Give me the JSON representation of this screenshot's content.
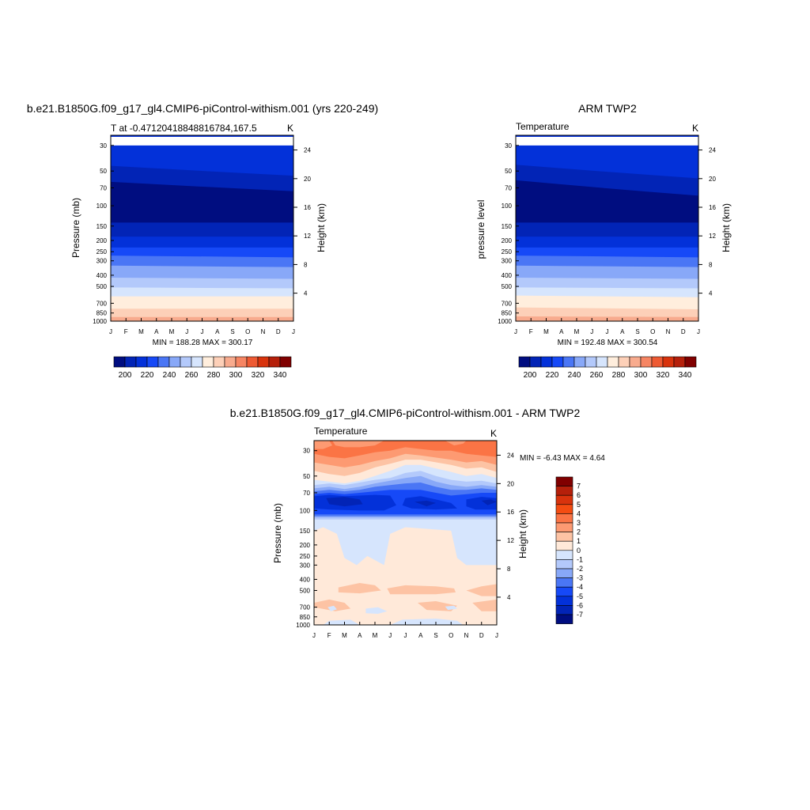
{
  "chart_data": [
    {
      "type": "heatmap",
      "title": "b.e21.B1850G.f09_g17_gl4.CMIP6-piControl-withism.001 (yrs 220-249)",
      "subtitle": "T at -0.47120418848816784,167.5",
      "units": "K",
      "ylabel": "Pressure (mb)",
      "ylabel_right": "Height (km)",
      "x_ticks": [
        "J",
        "F",
        "M",
        "A",
        "M",
        "J",
        "J",
        "A",
        "S",
        "O",
        "N",
        "D",
        "J"
      ],
      "y_ticks": [
        "30",
        "50",
        "70",
        "100",
        "150",
        "200",
        "250",
        "300",
        "400",
        "500",
        "700",
        "850",
        "1000"
      ],
      "y_ticks_right": [
        "24",
        "20",
        "16",
        "12",
        "8",
        "4"
      ],
      "stats": "MIN = 188.28 MAX = 300.17",
      "colorbar_labels": [
        "200",
        "220",
        "240",
        "260",
        "280",
        "300",
        "320",
        "340"
      ],
      "colorbar_orientation": "horizontal",
      "bands": [
        {
          "p": [
            30,
            30
          ],
          "color": "#0331d9"
        },
        {
          "p": [
            45,
            55
          ],
          "color": "#0224b6"
        },
        {
          "p": [
            62,
            75
          ],
          "color": "#000d80"
        },
        {
          "p": [
            140,
            140
          ],
          "color": "#0224b6"
        },
        {
          "p": [
            185,
            185
          ],
          "color": "#0331d9"
        },
        {
          "p": [
            230,
            230
          ],
          "color": "#1649f7"
        },
        {
          "p": [
            270,
            280
          ],
          "color": "#4a76f5"
        },
        {
          "p": [
            330,
            340
          ],
          "color": "#88a8f8"
        },
        {
          "p": [
            420,
            430
          ],
          "color": "#b3c9fb"
        },
        {
          "p": [
            510,
            520
          ],
          "color": "#d6e5fd"
        },
        {
          "p": [
            610,
            610
          ],
          "color": "#ffeedd"
        },
        {
          "p": [
            780,
            780
          ],
          "color": "#fdd0b8"
        },
        {
          "p": [
            920,
            920
          ],
          "color": "#f8ab8e"
        }
      ]
    },
    {
      "type": "heatmap",
      "title": "ARM TWP2",
      "subtitle": "Temperature",
      "units": "K",
      "ylabel": "pressure level",
      "ylabel_right": "Height (km)",
      "x_ticks": [
        "J",
        "F",
        "M",
        "A",
        "M",
        "J",
        "J",
        "A",
        "S",
        "O",
        "N",
        "D",
        "J"
      ],
      "y_ticks": [
        "30",
        "50",
        "70",
        "100",
        "150",
        "200",
        "250",
        "300",
        "400",
        "500",
        "700",
        "850",
        "1000"
      ],
      "y_ticks_right": [
        "24",
        "20",
        "16",
        "12",
        "8",
        "4"
      ],
      "stats": "MIN = 192.48 MAX = 300.54",
      "colorbar_labels": [
        "200",
        "220",
        "240",
        "260",
        "280",
        "300",
        "320",
        "340"
      ],
      "colorbar_orientation": "horizontal",
      "bands": [
        {
          "p": [
            30,
            30
          ],
          "color": "#0331d9"
        },
        {
          "p": [
            44,
            58
          ],
          "color": "#0224b6"
        },
        {
          "p": [
            60,
            82
          ],
          "color": "#000d80"
        },
        {
          "p": [
            140,
            140
          ],
          "color": "#0224b6"
        },
        {
          "p": [
            185,
            185
          ],
          "color": "#0331d9"
        },
        {
          "p": [
            230,
            230
          ],
          "color": "#1649f7"
        },
        {
          "p": [
            270,
            280
          ],
          "color": "#4a76f5"
        },
        {
          "p": [
            330,
            340
          ],
          "color": "#88a8f8"
        },
        {
          "p": [
            420,
            430
          ],
          "color": "#b3c9fb"
        },
        {
          "p": [
            510,
            520
          ],
          "color": "#d6e5fd"
        },
        {
          "p": [
            600,
            620
          ],
          "color": "#ffeedd"
        },
        {
          "p": [
            760,
            790
          ],
          "color": "#fdd0b8"
        },
        {
          "p": [
            910,
            920
          ],
          "color": "#f8ab8e"
        }
      ]
    },
    {
      "type": "heatmap",
      "title": "b.e21.B1850G.f09_g17_gl4.CMIP6-piControl-withism.001 - ARM TWP2",
      "subtitle": "Temperature",
      "units": "K",
      "ylabel": "Pressure (mb)",
      "ylabel_right": "Height (km)",
      "x_ticks": [
        "J",
        "F",
        "M",
        "A",
        "M",
        "J",
        "J",
        "A",
        "S",
        "O",
        "N",
        "D",
        "J"
      ],
      "y_ticks": [
        "30",
        "50",
        "70",
        "100",
        "150",
        "200",
        "250",
        "300",
        "400",
        "500",
        "700",
        "850",
        "1000"
      ],
      "y_ticks_right": [
        "24",
        "20",
        "16",
        "12",
        "8",
        "4"
      ],
      "stats": "MIN =  -6.43 MAX =   4.64",
      "colorbar_labels": [
        "7",
        "6",
        "5",
        "4",
        "3",
        "2",
        "1",
        "0",
        "-1",
        "-2",
        "-3",
        "-4",
        "-5",
        "-6",
        "-7"
      ],
      "colorbar_orientation": "vertical",
      "colorbar_colors": [
        "#800000",
        "#b5200b",
        "#d8330d",
        "#f44c12",
        "#fb7445",
        "#fd9a72",
        "#fdc3a4",
        "#ffe9d9",
        "#d6e5fd",
        "#b3c9fb",
        "#88a8f8",
        "#4a76f5",
        "#1649f7",
        "#0331d9",
        "#0224b6",
        "#000d80"
      ]
    }
  ],
  "colors": {
    "seq": [
      "#000d80",
      "#0224b6",
      "#0331d9",
      "#1649f7",
      "#4a76f5",
      "#88a8f8",
      "#b3c9fb",
      "#d6e5fd",
      "#ffeedd",
      "#fdd0b8",
      "#f8ab8e",
      "#f68563",
      "#ee5a33",
      "#d8330d",
      "#b5200b",
      "#800000"
    ],
    "diff_bg": "#d6e5fd",
    "diff_warm1": "#ffe9d9",
    "diff_warm2": "#fdc3a4",
    "diff_warm3": "#fd9a72",
    "diff_warm4": "#fb7445",
    "diff_cool1": "#b3c9fb",
    "diff_cool2": "#88a8f8",
    "diff_cool3": "#4a76f5",
    "diff_cool4": "#1649f7",
    "diff_cool5": "#0331d9",
    "diff_cool6": "#0224b6"
  }
}
